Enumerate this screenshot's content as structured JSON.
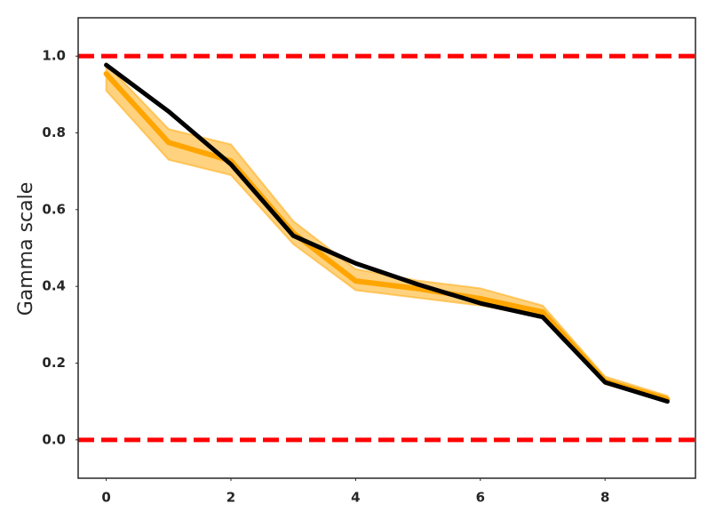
{
  "chart_data": {
    "type": "line",
    "y_label": "Gamma scale",
    "x": [
      0,
      1,
      2,
      3,
      4,
      5,
      6,
      7,
      8,
      9
    ],
    "series": [
      {
        "color": "#000000",
        "values": [
          0.977,
          0.856,
          0.718,
          0.532,
          0.46,
          0.405,
          0.356,
          0.32,
          0.15,
          0.1
        ]
      },
      {
        "color": "#ffa500",
        "values": [
          0.954,
          0.775,
          0.727,
          0.539,
          0.414,
          0.394,
          0.368,
          0.333,
          0.153,
          0.106
        ],
        "lower": [
          0.91,
          0.73,
          0.69,
          0.51,
          0.39,
          0.37,
          0.35,
          0.32,
          0.145,
          0.1
        ],
        "upper": [
          0.98,
          0.81,
          0.77,
          0.57,
          0.445,
          0.415,
          0.395,
          0.35,
          0.165,
          0.115
        ]
      }
    ],
    "reference_lines": [
      {
        "y": 1.0,
        "color": "#ff0000"
      },
      {
        "y": 0.0,
        "color": "#ff0000"
      }
    ],
    "xlim": [
      -0.45,
      9.45
    ],
    "ylim": [
      -0.1,
      1.1
    ],
    "xticks": [
      0,
      2,
      4,
      6,
      8
    ],
    "yticks": [
      {
        "value": 0,
        "label": "0.0"
      },
      0.2,
      0.4,
      0.6,
      0.8,
      {
        "value": 1,
        "label": "1.0"
      }
    ],
    "grid": false
  }
}
